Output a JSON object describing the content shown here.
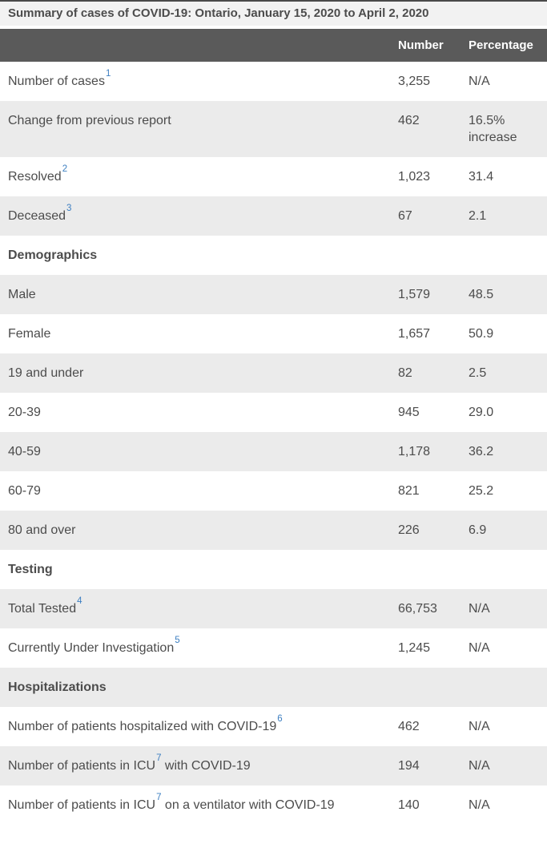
{
  "title": "Summary of cases of COVID-19: Ontario, January 15, 2020 to April 2, 2020",
  "columns": {
    "number": "Number",
    "percentage": "Percentage"
  },
  "colors": {
    "header_bg": "#5a5a5a",
    "header_text": "#ffffff",
    "stripe_bg": "#ebebeb",
    "title_bg": "#f2f2f2",
    "top_border": "#4a4a4a",
    "body_text": "#4c4c4c",
    "footnote_link": "#3d7fc1"
  },
  "rows": [
    {
      "type": "data",
      "label_parts": [
        {
          "text": "Number of cases"
        },
        {
          "sup": "1"
        }
      ],
      "number": "3,255",
      "percentage": "N/A"
    },
    {
      "type": "data",
      "label_parts": [
        {
          "text": "Change from previous report"
        }
      ],
      "number": "462",
      "percentage": "16.5% increase"
    },
    {
      "type": "data",
      "label_parts": [
        {
          "text": "Resolved"
        },
        {
          "sup": "2"
        }
      ],
      "number": "1,023",
      "percentage": "31.4"
    },
    {
      "type": "data",
      "label_parts": [
        {
          "text": "Deceased"
        },
        {
          "sup": "3"
        }
      ],
      "number": "67",
      "percentage": "2.1"
    },
    {
      "type": "section",
      "label_parts": [
        {
          "text": "Demographics"
        }
      ]
    },
    {
      "type": "data",
      "label_parts": [
        {
          "text": "Male"
        }
      ],
      "number": "1,579",
      "percentage": "48.5"
    },
    {
      "type": "data",
      "label_parts": [
        {
          "text": "Female"
        }
      ],
      "number": "1,657",
      "percentage": "50.9"
    },
    {
      "type": "data",
      "label_parts": [
        {
          "text": "19 and under"
        }
      ],
      "number": "82",
      "percentage": "2.5"
    },
    {
      "type": "data",
      "label_parts": [
        {
          "text": "20-39"
        }
      ],
      "number": "945",
      "percentage": "29.0"
    },
    {
      "type": "data",
      "label_parts": [
        {
          "text": "40-59"
        }
      ],
      "number": "1,178",
      "percentage": "36.2"
    },
    {
      "type": "data",
      "label_parts": [
        {
          "text": "60-79"
        }
      ],
      "number": "821",
      "percentage": "25.2"
    },
    {
      "type": "data",
      "label_parts": [
        {
          "text": "80 and over"
        }
      ],
      "number": "226",
      "percentage": "6.9"
    },
    {
      "type": "section",
      "label_parts": [
        {
          "text": "Testing"
        }
      ]
    },
    {
      "type": "data",
      "label_parts": [
        {
          "text": "Total Tested"
        },
        {
          "sup": "4"
        }
      ],
      "number": "66,753",
      "percentage": "N/A"
    },
    {
      "type": "data",
      "label_parts": [
        {
          "text": "Currently Under Investigation"
        },
        {
          "sup": "5"
        }
      ],
      "number": "1,245",
      "percentage": "N/A"
    },
    {
      "type": "section",
      "label_parts": [
        {
          "text": "Hospitalizations"
        }
      ]
    },
    {
      "type": "data",
      "label_parts": [
        {
          "text": "Number of patients hospitalized with COVID-19"
        },
        {
          "sup": "6"
        }
      ],
      "number": "462",
      "percentage": "N/A"
    },
    {
      "type": "data",
      "label_parts": [
        {
          "text": "Number of patients in ICU"
        },
        {
          "sup": "7"
        },
        {
          "text": " with COVID-19"
        }
      ],
      "number": "194",
      "percentage": "N/A"
    },
    {
      "type": "data",
      "label_parts": [
        {
          "text": "Number of patients in ICU"
        },
        {
          "sup": "7"
        },
        {
          "text": " on a ventilator with COVID-19"
        }
      ],
      "number": "140",
      "percentage": "N/A"
    }
  ]
}
